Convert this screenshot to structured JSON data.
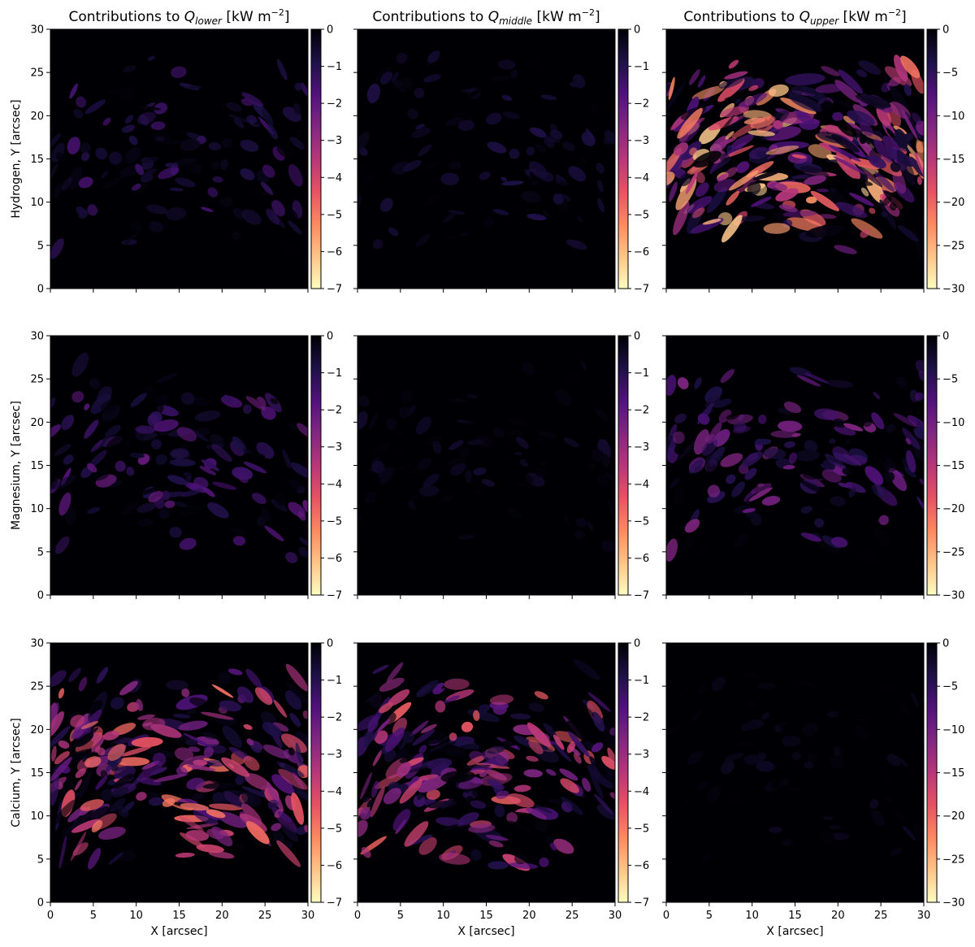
{
  "chart_data": {
    "type": "heatmap",
    "layout": "3x3 grid",
    "column_titles": [
      {
        "prefix": "Contributions to ",
        "symbol": "Q",
        "subscript": "lower",
        "unit_open": " [kW m",
        "unit_exp": "−2",
        "unit_close": "]"
      },
      {
        "prefix": "Contributions to ",
        "symbol": "Q",
        "subscript": "middle",
        "unit_open": " [kW m",
        "unit_exp": "−2",
        "unit_close": "]"
      },
      {
        "prefix": "Contributions to ",
        "symbol": "Q",
        "subscript": "upper",
        "unit_open": " [kW m",
        "unit_exp": "−2",
        "unit_close": "]"
      }
    ],
    "row_labels": [
      "Hydrogen, Y [arcsec]",
      "Magnesium, Y [arcsec]",
      "Calcium, Y [arcsec]"
    ],
    "xlabel": "X [arcsec]",
    "xlim": [
      0,
      30
    ],
    "ylim": [
      0,
      30
    ],
    "x_ticks": [
      "0",
      "5",
      "10",
      "15",
      "20",
      "25",
      "30"
    ],
    "y_ticks": [
      "0",
      "5",
      "10",
      "15",
      "20",
      "25",
      "30"
    ],
    "colormap": "magma (reversed: 0 = black, most negative = pale yellow)",
    "colorbar_colors": [
      "#000004",
      "#1d1147",
      "#51127c",
      "#822681",
      "#b73779",
      "#e75263",
      "#fc8961",
      "#fec488",
      "#fcfdbf"
    ],
    "colorbars": [
      {
        "range": [
          -7,
          0
        ],
        "ticks": [
          "0",
          "−1",
          "−2",
          "−3",
          "−4",
          "−5",
          "−6",
          "−7"
        ],
        "values": [
          0,
          -1,
          -2,
          -3,
          -4,
          -5,
          -6,
          -7
        ]
      },
      {
        "range": [
          -7,
          0
        ],
        "ticks": [
          "0",
          "−1",
          "−2",
          "−3",
          "−4",
          "−5",
          "−6",
          "−7"
        ],
        "values": [
          0,
          -1,
          -2,
          -3,
          -4,
          -5,
          -6,
          -7
        ]
      },
      {
        "range": [
          -30,
          0
        ],
        "ticks": [
          "0",
          "−5",
          "−10",
          "−15",
          "−20",
          "−25",
          "−30"
        ],
        "values": [
          0,
          -5,
          -10,
          -15,
          -20,
          -25,
          -30
        ]
      }
    ],
    "panels": [
      {
        "element": "Hydrogen",
        "column": "lower",
        "vmin": -7,
        "vmax": 0,
        "intensity": 0.22
      },
      {
        "element": "Hydrogen",
        "column": "middle",
        "vmin": -7,
        "vmax": 0,
        "intensity": 0.12
      },
      {
        "element": "Hydrogen",
        "column": "upper",
        "vmin": -30,
        "vmax": 0,
        "intensity": 0.8
      },
      {
        "element": "Magnesium",
        "column": "lower",
        "vmin": -7,
        "vmax": 0,
        "intensity": 0.28
      },
      {
        "element": "Magnesium",
        "column": "middle",
        "vmin": -7,
        "vmax": 0,
        "intensity": 0.08
      },
      {
        "element": "Magnesium",
        "column": "upper",
        "vmin": -30,
        "vmax": 0,
        "intensity": 0.34
      },
      {
        "element": "Calcium",
        "column": "lower",
        "vmin": -7,
        "vmax": 0,
        "intensity": 0.62
      },
      {
        "element": "Calcium",
        "column": "middle",
        "vmin": -7,
        "vmax": 0,
        "intensity": 0.58
      },
      {
        "element": "Calcium",
        "column": "upper",
        "vmin": -30,
        "vmax": 0,
        "intensity": 0.05
      }
    ]
  }
}
